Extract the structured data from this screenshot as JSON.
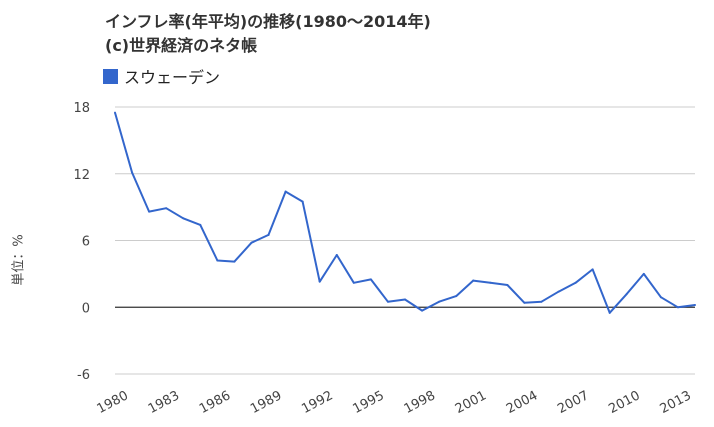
{
  "header": {
    "title_line1": "インフレ率(年平均)の推移(1980～2014年)",
    "title_line2": "(c)世界経済のネタ帳"
  },
  "chart_data": {
    "type": "line",
    "title": "インフレ率(年平均)の推移(1980～2014年)",
    "subtitle": "(c)世界経済のネタ帳",
    "ylabel": "単位：%",
    "xlabel": "",
    "ylim": [
      -6,
      18
    ],
    "yticks": [
      18,
      12,
      6,
      0,
      -6
    ],
    "xlim": [
      1980,
      2014
    ],
    "xticks": [
      "1980",
      "1983",
      "1986",
      "1989",
      "1992",
      "1995",
      "1998",
      "2001",
      "2004",
      "2007",
      "2010",
      "2013"
    ],
    "grid": true,
    "legend_position": "top-left",
    "colors": {
      "series": "#3366cc",
      "grid": "#cccccc",
      "baseline": "#333333",
      "axis_text": "#444444"
    },
    "x": [
      1980,
      1981,
      1982,
      1983,
      1984,
      1985,
      1986,
      1987,
      1988,
      1989,
      1990,
      1991,
      1992,
      1993,
      1994,
      1995,
      1996,
      1997,
      1998,
      1999,
      2000,
      2001,
      2002,
      2003,
      2004,
      2005,
      2006,
      2007,
      2008,
      2009,
      2010,
      2011,
      2012,
      2013,
      2014
    ],
    "series": [
      {
        "name": "スウェーデン",
        "values": [
          17.5,
          12.1,
          8.6,
          8.9,
          8.0,
          7.4,
          4.2,
          4.1,
          5.8,
          6.5,
          10.4,
          9.5,
          2.3,
          4.7,
          2.2,
          2.5,
          0.5,
          0.7,
          -0.3,
          0.5,
          1.0,
          2.4,
          2.2,
          2.0,
          0.4,
          0.5,
          1.4,
          2.2,
          3.4,
          -0.5,
          1.2,
          3.0,
          0.9,
          0.0,
          0.2
        ]
      }
    ]
  }
}
